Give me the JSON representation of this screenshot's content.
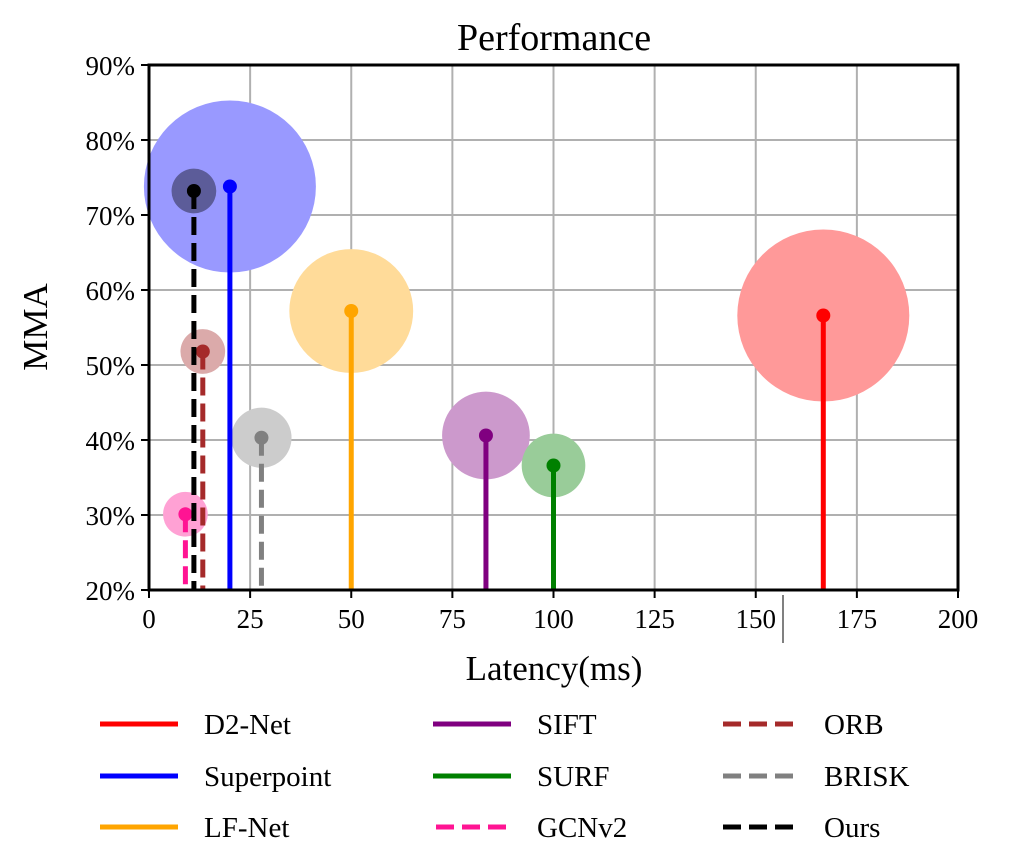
{
  "chart_data": {
    "type": "scatter",
    "subtype": "bubble-stem",
    "title": "Performance",
    "xlabel": "Latency(ms)",
    "ylabel": "MMA",
    "xlim": [
      0,
      200
    ],
    "ylim": [
      20,
      90
    ],
    "xticks": [
      0,
      25,
      50,
      75,
      100,
      125,
      150,
      175,
      200
    ],
    "xtick_labels": [
      "0",
      "25",
      "50",
      "75",
      "100",
      "125",
      "150",
      "175",
      "200"
    ],
    "yticks": [
      20,
      30,
      40,
      50,
      60,
      70,
      80,
      90
    ],
    "ytick_labels": [
      "20%",
      "30%",
      "40%",
      "50%",
      "60%",
      "70%",
      "80%",
      "90%"
    ],
    "grid": true,
    "legend_position": "bottom",
    "legend_columns": 3,
    "series": [
      {
        "name": "D2-Net",
        "latency_ms": 166.7,
        "mma": 56.6,
        "bubble_size": 1.0,
        "color": "#ff0000",
        "bubble_color": "#ff9999",
        "line_style": "solid"
      },
      {
        "name": "Superpoint",
        "latency_ms": 20.0,
        "mma": 73.8,
        "bubble_size": 1.0,
        "color": "#0000ff",
        "bubble_color": "#9999ff",
        "line_style": "solid"
      },
      {
        "name": "LF-Net",
        "latency_ms": 50.0,
        "mma": 57.2,
        "bubble_size": 0.72,
        "color": "#ffa500",
        "bubble_color": "#ffdb99",
        "line_style": "solid"
      },
      {
        "name": "SIFT",
        "latency_ms": 83.3,
        "mma": 40.6,
        "bubble_size": 0.51,
        "color": "#800080",
        "bubble_color": "#cc99cc",
        "line_style": "solid"
      },
      {
        "name": "SURF",
        "latency_ms": 100.0,
        "mma": 36.6,
        "bubble_size": 0.37,
        "color": "#008000",
        "bubble_color": "#99cc99",
        "line_style": "solid"
      },
      {
        "name": "GCNv2",
        "latency_ms": 9.0,
        "mma": 30.1,
        "bubble_size": 0.26,
        "color": "#ff1493",
        "bubble_color": "#ffa1d4",
        "line_style": "dashed"
      },
      {
        "name": "ORB",
        "latency_ms": 13.3,
        "mma": 51.8,
        "bubble_size": 0.26,
        "color": "#a52a2a",
        "bubble_color": "#dbaaaa",
        "line_style": "dashed"
      },
      {
        "name": "BRISK",
        "latency_ms": 27.8,
        "mma": 40.3,
        "bubble_size": 0.35,
        "color": "#808080",
        "bubble_color": "#cccccc",
        "line_style": "dashed"
      },
      {
        "name": "Ours",
        "latency_ms": 11.1,
        "mma": 73.2,
        "bubble_size": 0.26,
        "color": "#000000",
        "bubble_color": "#5c5c99",
        "line_style": "dashed"
      }
    ],
    "legend_order": [
      "D2-Net",
      "Superpoint",
      "LF-Net",
      "SIFT",
      "SURF",
      "GCNv2",
      "ORB",
      "BRISK",
      "Ours"
    ]
  }
}
